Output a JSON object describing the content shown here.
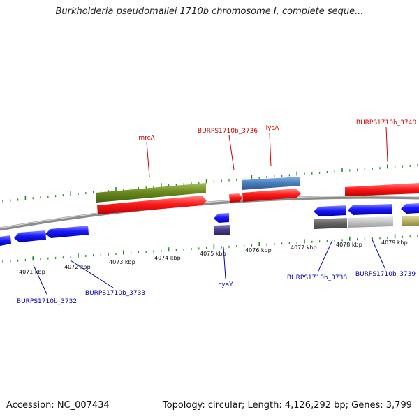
{
  "header": {
    "title": "Burkholderia pseudomallei 1710b chromosome I, complete seque..."
  },
  "footer": {
    "accession": "Accession: NC_007434",
    "summary": "Topology: circular; Length: 4,126,292 bp; Genes: 3,799"
  },
  "colors": {
    "backbone": "#8c8c8c",
    "tick": "#2a8a2a",
    "label_top": "#d40000",
    "label_bottom": "#0000c0",
    "gene_red": "#ff1a1a",
    "gene_blue": "#1a1aff",
    "gene_olive": "#6b8a1e",
    "gene_steel": "#4a80c0",
    "gene_navy": "#4a3f8a",
    "gene_gray_dark": "#666666",
    "gene_gray_light": "#c8c8c8",
    "gene_khaki": "#bdb56a"
  },
  "scale": {
    "tick_labels": [
      "4071 kbp",
      "4072 kbp",
      "4073 kbp",
      "4074 kbp",
      "4075 kbp",
      "4076 kbp",
      "4077 kbp",
      "4078 kbp",
      "4079 kbp"
    ]
  },
  "gene_labels": {
    "top": [
      "mrcA",
      "BURPS1710b_3736",
      "lysA",
      "BURPS1710b_3740"
    ],
    "bottom": [
      "BURPS1710b_3732",
      "BURPS1710b_3733",
      "cyaY",
      "BURPS1710b_3738",
      "BURPS1710b_3739"
    ]
  },
  "features": [
    {
      "name": "BURPS1710b_3732",
      "strand": "-",
      "track": "gene",
      "color": "gene_blue"
    },
    {
      "name": "BURPS1710b_3733",
      "strand": "-",
      "track": "gene",
      "color": "gene_blue"
    },
    {
      "name": "mrcA",
      "strand": "+",
      "track": "gene",
      "color": "gene_red"
    },
    {
      "name": "mrcA",
      "strand": "+",
      "track": "cds",
      "color": "gene_olive"
    },
    {
      "name": "cyaY",
      "strand": "-",
      "track": "gene",
      "color": "gene_blue"
    },
    {
      "name": "cyaY",
      "strand": "-",
      "track": "cds",
      "color": "gene_navy"
    },
    {
      "name": "BURPS1710b_3736",
      "strand": "+",
      "track": "gene",
      "color": "gene_red"
    },
    {
      "name": "lysA",
      "strand": "+",
      "track": "gene",
      "color": "gene_red"
    },
    {
      "name": "lysA",
      "strand": "+",
      "track": "cds",
      "color": "gene_steel"
    },
    {
      "name": "BURPS1710b_3738",
      "strand": "-",
      "track": "gene",
      "color": "gene_blue"
    },
    {
      "name": "BURPS1710b_3738",
      "strand": "-",
      "track": "cds",
      "color": "gene_gray_dark"
    },
    {
      "name": "BURPS1710b_3739",
      "strand": "-",
      "track": "gene",
      "color": "gene_blue"
    },
    {
      "name": "BURPS1710b_3739",
      "strand": "-",
      "track": "cds",
      "color": "gene_gray_light"
    },
    {
      "name": "BURPS1710b_3740",
      "strand": "+",
      "track": "gene",
      "color": "gene_red"
    },
    {
      "name": "",
      "strand": "-",
      "track": "gene",
      "color": "gene_blue"
    },
    {
      "name": "",
      "strand": "-",
      "track": "cds",
      "color": "gene_khaki"
    }
  ]
}
